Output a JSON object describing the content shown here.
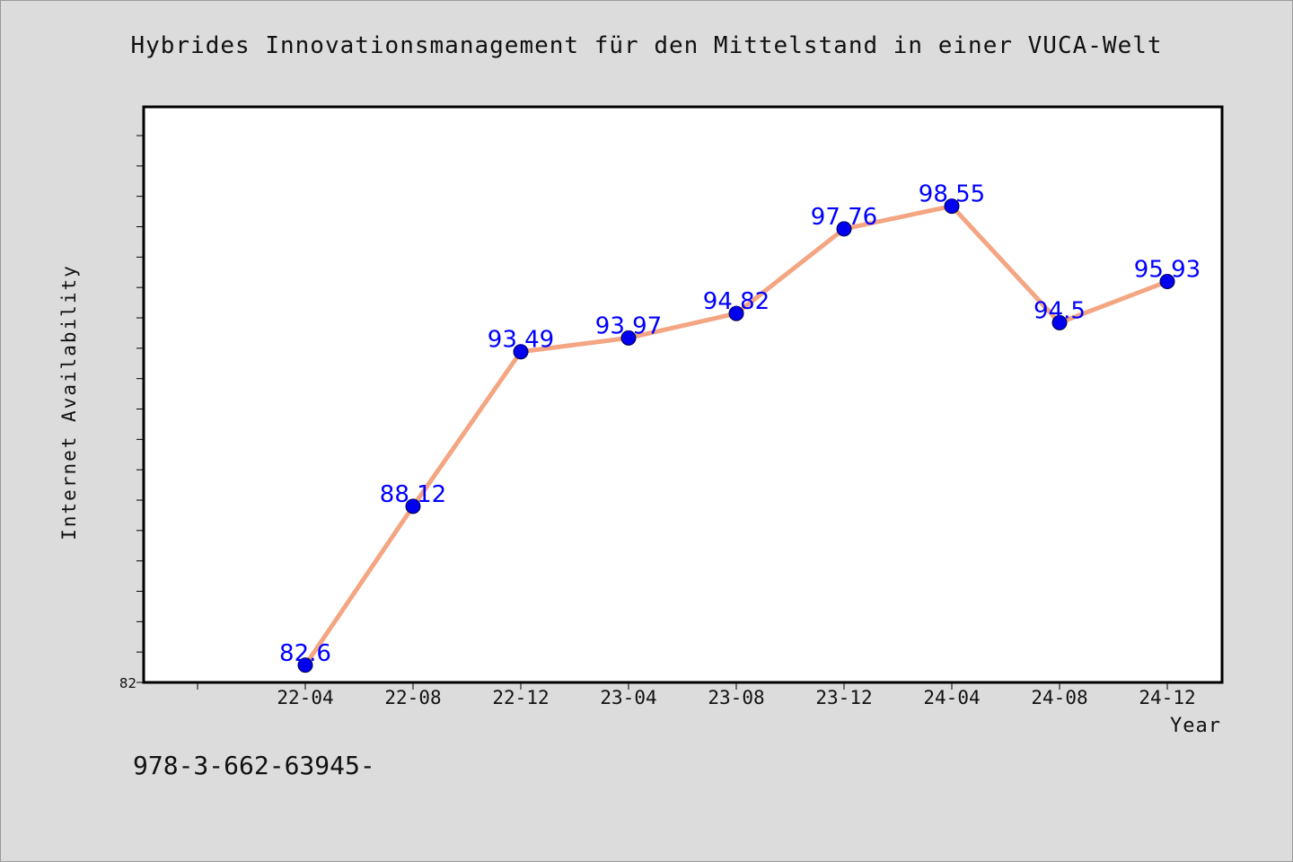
{
  "colors": {
    "line": "#f4a582",
    "marker": "#0000ee",
    "data_label": "#0000ff"
  },
  "footer": {
    "note": "978-3-662-63945-"
  },
  "chart_data": {
    "type": "line",
    "title": "Hybrides Innovationsmanagement für den Mittelstand in einer VUCA-Welt",
    "xlabel": "Year",
    "ylabel": "Internet Availability",
    "categories": [
      "22-04",
      "22-08",
      "22-12",
      "23-04",
      "23-08",
      "23-12",
      "24-04",
      "24-08",
      "24-12"
    ],
    "series": [
      {
        "values": [
          82.6,
          88.12,
          93.49,
          93.97,
          94.82,
          97.76,
          98.55,
          94.5,
          95.93
        ]
      }
    ],
    "data_labels": [
      "82.6",
      "88.12",
      "93.49",
      "93.97",
      "94.82",
      "97.76",
      "98.55",
      "94.5",
      "95.93"
    ],
    "ylim": [
      82,
      102
    ],
    "y_tick_labels": [
      "82"
    ],
    "grid": false,
    "legend": "none"
  }
}
